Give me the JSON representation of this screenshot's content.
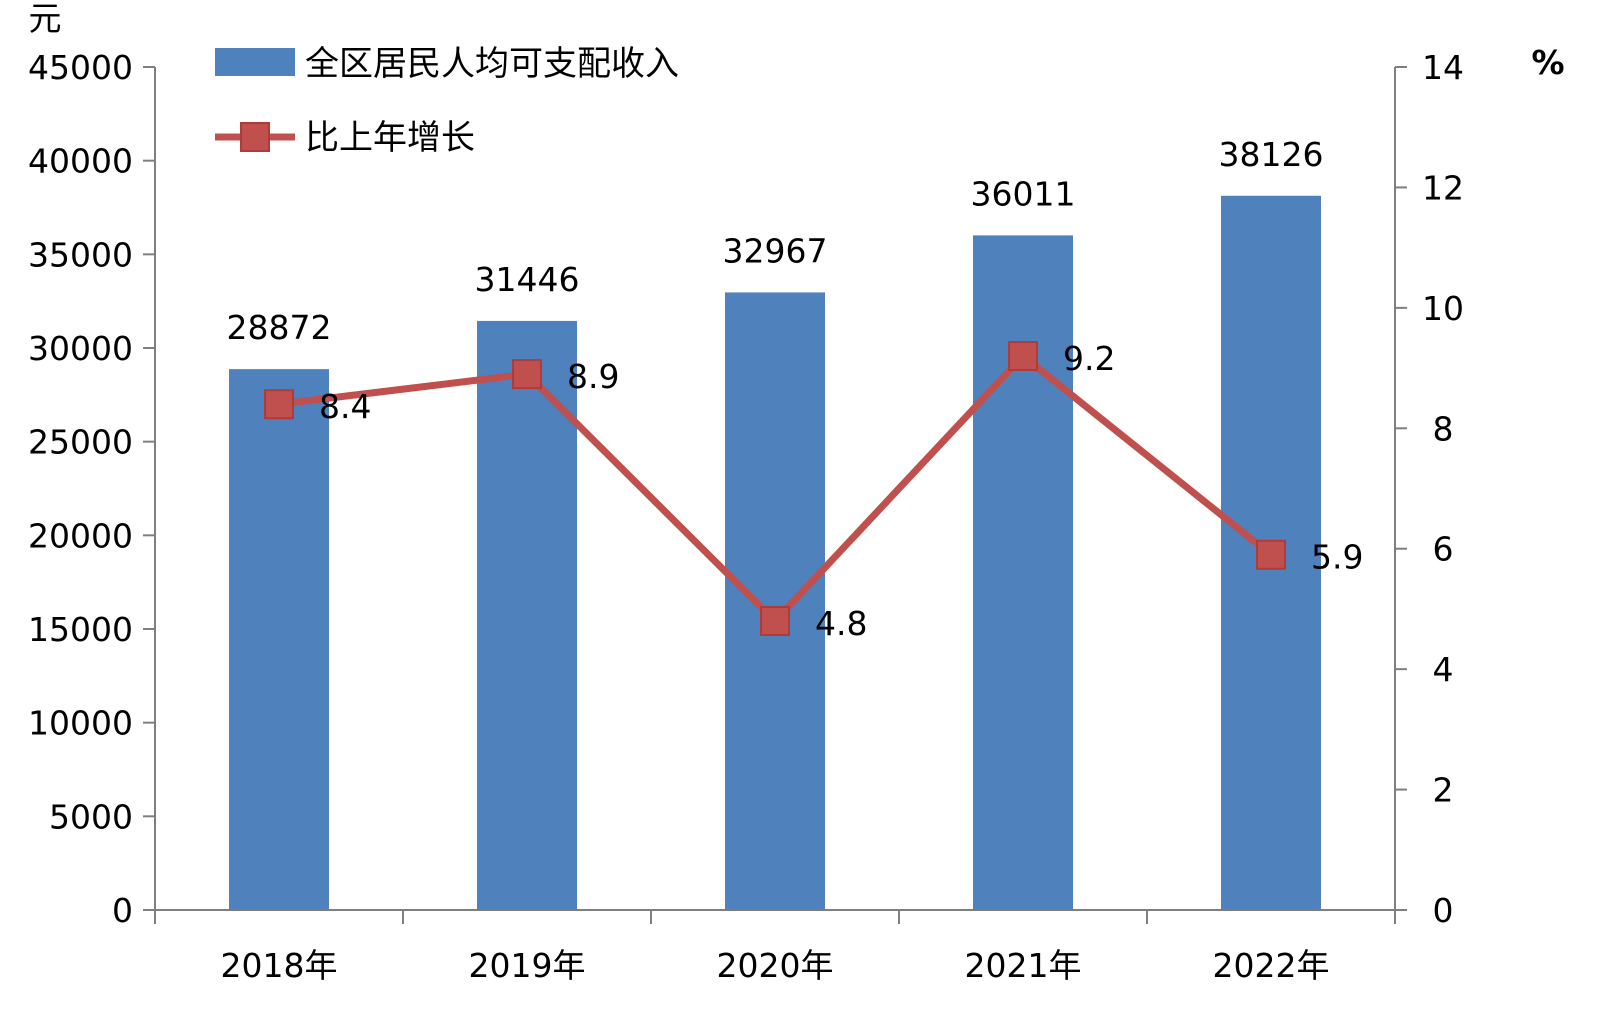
{
  "chart_data": {
    "type": "bar",
    "categories": [
      "2018年",
      "2019年",
      "2020年",
      "2021年",
      "2022年"
    ],
    "series": [
      {
        "name": "全区居民人均可支配收入",
        "type": "bar",
        "axis": "left",
        "values": [
          28872,
          31446,
          32967,
          36011,
          38126
        ],
        "value_labels": [
          "28872",
          "31446",
          "32967",
          "36011",
          "38126"
        ],
        "color": "#4f81bd"
      },
      {
        "name": "比上年增长",
        "type": "line",
        "axis": "right",
        "marker": "square",
        "values": [
          8.4,
          8.9,
          4.8,
          9.2,
          5.9
        ],
        "value_labels": [
          "8.4",
          "8.9",
          "4.8",
          "9.2",
          "5.9"
        ],
        "color": "#c0504d"
      }
    ],
    "y_left": {
      "unit": "元",
      "range": [
        0,
        45000
      ],
      "ticks": [
        0,
        5000,
        10000,
        15000,
        20000,
        25000,
        30000,
        35000,
        40000,
        45000
      ],
      "tick_labels": [
        "0",
        "5000",
        "10000",
        "15000",
        "20000",
        "25000",
        "30000",
        "35000",
        "40000",
        "45000"
      ]
    },
    "y_right": {
      "unit": "%",
      "range": [
        0,
        14
      ],
      "ticks": [
        0,
        2,
        4,
        6,
        8,
        10,
        12,
        14
      ],
      "tick_labels": [
        "0",
        "2",
        "4",
        "6",
        "8",
        "10",
        "12",
        "14"
      ]
    },
    "grid": false,
    "legend_position": "top-left"
  }
}
